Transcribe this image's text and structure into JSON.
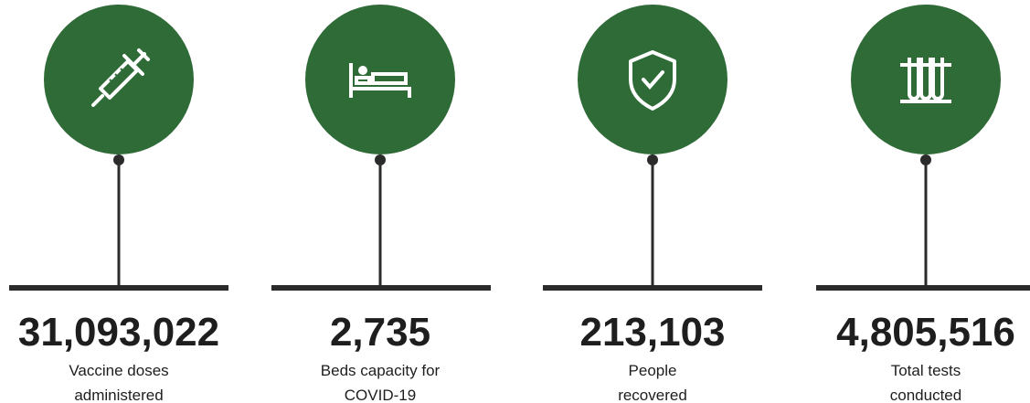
{
  "items": [
    {
      "value": "31,093,022",
      "label_lines": [
        "Vaccine doses",
        "administered"
      ]
    },
    {
      "value": "2,735",
      "label_lines": [
        "Beds capacity for",
        "COVID-19"
      ]
    },
    {
      "value": "213,103",
      "label_lines": [
        "People",
        "recovered"
      ]
    },
    {
      "value": "4,805,516",
      "label_lines": [
        "Total tests",
        "conducted"
      ]
    }
  ]
}
